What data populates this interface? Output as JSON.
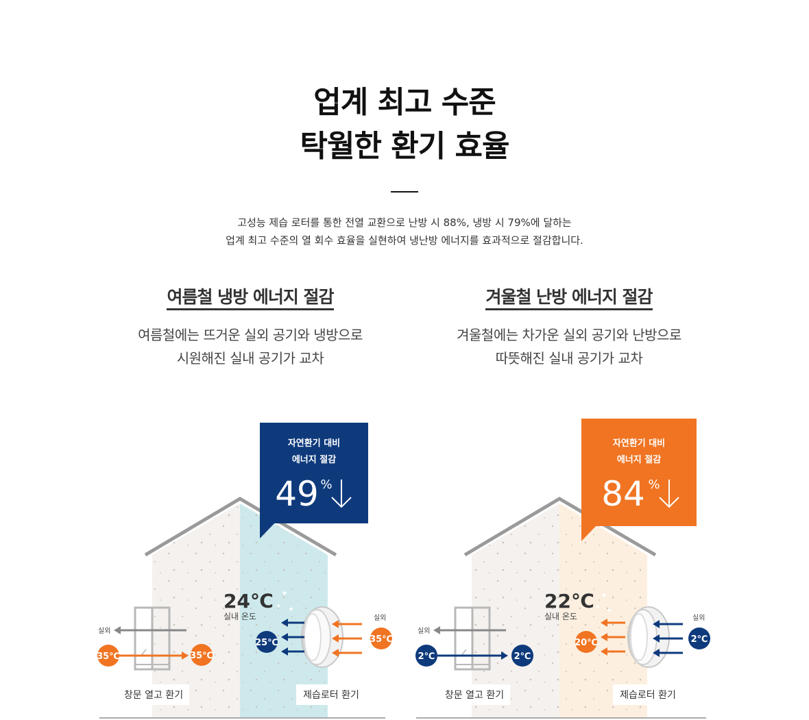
{
  "header": {
    "title_line1": "업계 최고 수준",
    "title_line2": "탁월한 환기 효율",
    "desc_line1": "고성능 제습 로터를 통한 전열 교환으로 난방 시 88%, 냉방 시 79%에 달하는",
    "desc_line2": "업계 최고 수준의 열 회수 효율을 실현하여 냉난방 에너지를 효과적으로 절감합니다."
  },
  "summer": {
    "title": "여름철 냉방 에너지 절감",
    "desc_line1": "여름철에는 뜨거운 실외 공기와 냉방으로",
    "desc_line2": "시원해진 실내 공기가 교차",
    "badge_line1": "자연환기 대비",
    "badge_line2": "에너지 절감",
    "badge_value": "49",
    "badge_unit": "%",
    "indoor_temp": "24℃",
    "indoor_label": "실내 온도",
    "outdoor_label_left": "실외",
    "outdoor_label_right": "실외",
    "window_in_temp": "35℃",
    "window_out_temp": "35℃",
    "rotor_in_temp": "25℃",
    "rotor_out_temp": "35℃",
    "window_label": "창문 열고 환기",
    "rotor_label": "제습로터 환기",
    "color": "#0e3a7c"
  },
  "winter": {
    "title": "겨울철 난방 에너지 절감",
    "desc_line1": "겨울철에는 차가운 실외 공기와 난방으로",
    "desc_line2": "따뜻해진 실내 공기가 교차",
    "badge_line1": "자연환기 대비",
    "badge_line2": "에너지 절감",
    "badge_value": "84",
    "badge_unit": "%",
    "indoor_temp": "22℃",
    "indoor_label": "실내 온도",
    "outdoor_label_left": "실외",
    "outdoor_label_right": "실외",
    "window_in_temp": "2℃",
    "window_out_temp": "2℃",
    "rotor_in_temp": "20℃",
    "rotor_out_temp": "2℃",
    "window_label": "창문 열고 환기",
    "rotor_label": "제습로터 환기",
    "color": "#f07422"
  },
  "colors": {
    "navy": "#0e3a7c",
    "orange": "#f07422",
    "wall": "#f4f1ee",
    "cool": "#cde9ec",
    "warm": "#fdefdf"
  }
}
